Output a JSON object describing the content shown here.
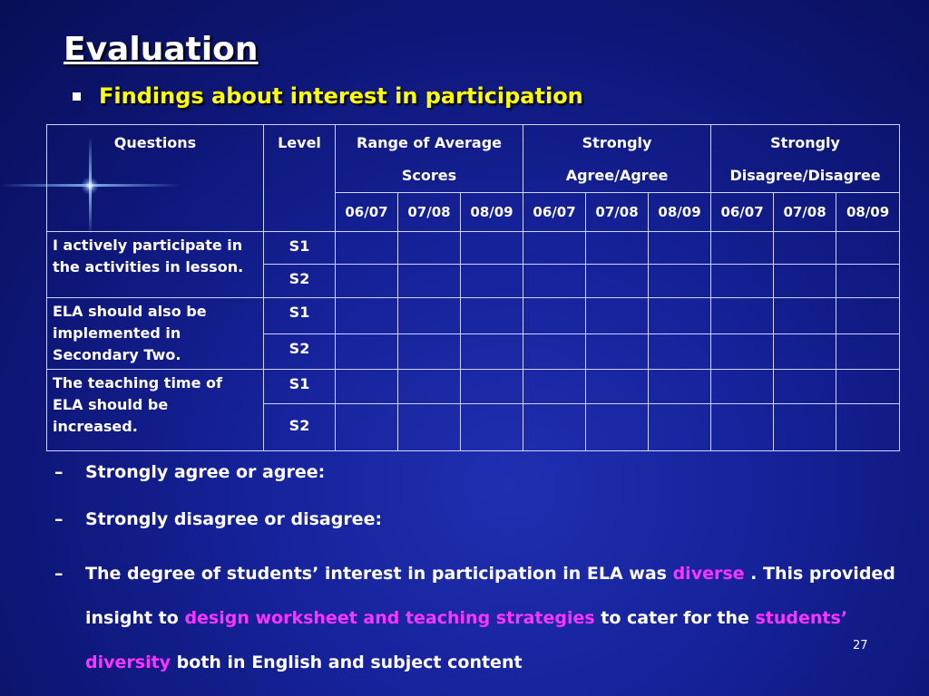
{
  "slide": {
    "title": "Evaluation",
    "subtitle": "Findings about interest in participation",
    "page_number": "27"
  },
  "table": {
    "header": {
      "questions": "Questions",
      "level": "Level",
      "range_line1": "Range of Average",
      "range_line2": "Scores",
      "agree_line1": "Strongly",
      "agree_line2": "Agree/Agree",
      "disagree_line1": "Strongly",
      "disagree_line2": "Disagree/Disagree",
      "years": [
        "06/07",
        "07/08",
        "08/09",
        "06/07",
        "07/08",
        "08/09",
        "06/07",
        "07/08",
        "08/09"
      ]
    },
    "rows": [
      {
        "question": "I actively participate in the activities in lesson.",
        "levels": [
          "S1",
          "S2"
        ]
      },
      {
        "question": "ELA should also be implemented in Secondary Two.",
        "levels": [
          "S1",
          "S2"
        ]
      },
      {
        "question": "The teaching time of ELA should be increased.",
        "levels": [
          "S1",
          "S2"
        ]
      }
    ]
  },
  "notes": {
    "dash": "–",
    "item1": "Strongly agree or agree:",
    "item2": "Strongly disagree or disagree:",
    "item3_part1": "The degree of students’ interest in participation in ELA was ",
    "item3_hl1": "diverse",
    "item3_part2": " .  This provided insight to ",
    "item3_hl2": "design worksheet and teaching strategies",
    "item3_part3": " to cater for the ",
    "item3_hl3": "students’ diversity",
    "item3_part4": " both in English and subject content"
  },
  "colors": {
    "background": "#16229a",
    "subtitle": "#ffff00",
    "highlight": "#ff33ff",
    "grid_line": "#d0d6ff"
  }
}
